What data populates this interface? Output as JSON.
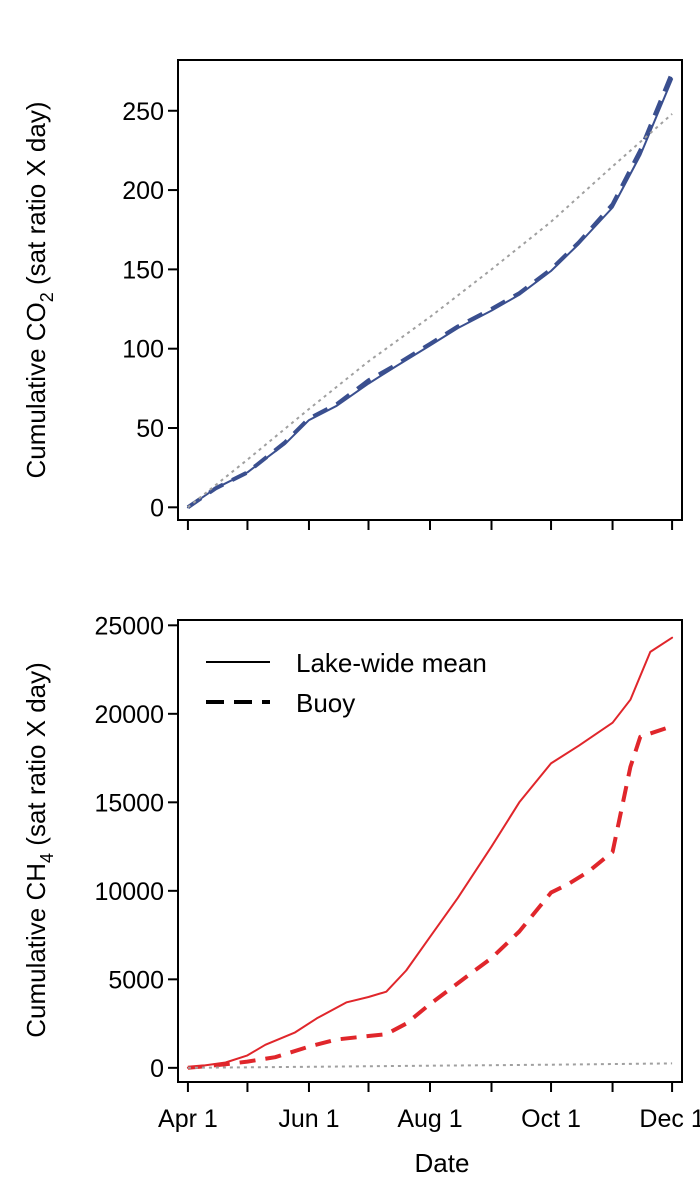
{
  "chart_data": [
    {
      "type": "line",
      "panel": "top",
      "ylabel": {
        "main": "Cumulative CO",
        "sub": "2",
        "tail": " (sat ratio X day)"
      },
      "xlabel": "",
      "ylim": [
        -8,
        282
      ],
      "yticks": [
        0,
        50,
        100,
        150,
        200,
        250
      ],
      "xlim": [
        "2013-03-27",
        "2013-12-06"
      ],
      "xticks": [
        "2013-04-01",
        "2013-05-01",
        "2013-06-01",
        "2013-07-01",
        "2013-08-01",
        "2013-09-01",
        "2013-10-01",
        "2013-11-01",
        "2013-12-01"
      ],
      "xtick_labels_shown": false,
      "grid": false,
      "colors": {
        "main": "#3a4f8f",
        "reference": "#a0a0a0"
      },
      "series": [
        {
          "style": "solid",
          "color": "#3a4f8f",
          "x": [
            "2013-04-01",
            "2013-04-15",
            "2013-05-01",
            "2013-05-20",
            "2013-06-01",
            "2013-06-15",
            "2013-07-01",
            "2013-07-15",
            "2013-08-01",
            "2013-08-15",
            "2013-09-01",
            "2013-09-15",
            "2013-10-01",
            "2013-10-15",
            "2013-11-01",
            "2013-11-15",
            "2013-12-01"
          ],
          "y": [
            0,
            12,
            22,
            40,
            55,
            64,
            78,
            89,
            102,
            113,
            124,
            134,
            149,
            166,
            189,
            222,
            270
          ]
        },
        {
          "style": "dashed",
          "color": "#3a4f8f",
          "x": [
            "2013-04-01",
            "2013-04-15",
            "2013-05-01",
            "2013-05-20",
            "2013-06-01",
            "2013-06-15",
            "2013-07-01",
            "2013-07-15",
            "2013-08-01",
            "2013-08-15",
            "2013-09-01",
            "2013-09-15",
            "2013-10-01",
            "2013-10-15",
            "2013-11-01",
            "2013-11-15",
            "2013-12-01"
          ],
          "y": [
            0,
            12,
            22,
            41,
            56,
            65,
            80,
            90,
            103,
            114,
            125,
            135,
            150,
            167,
            191,
            225,
            274
          ]
        },
        {
          "style": "dotted",
          "color": "#a0a0a0",
          "x": [
            "2013-04-01",
            "2013-05-01",
            "2013-06-01",
            "2013-07-01",
            "2013-08-01",
            "2013-09-01",
            "2013-10-01",
            "2013-11-01",
            "2013-12-01"
          ],
          "y": [
            0,
            30,
            62,
            92,
            120,
            150,
            180,
            215,
            248
          ]
        }
      ]
    },
    {
      "type": "line",
      "panel": "bottom",
      "ylabel": {
        "main": "Cumulative CH",
        "sub": "4",
        "tail": " (sat ratio X day)"
      },
      "xlabel": "Date",
      "ylim": [
        -800,
        25300
      ],
      "yticks": [
        0,
        5000,
        10000,
        15000,
        20000,
        25000
      ],
      "xlim": [
        "2013-03-27",
        "2013-12-06"
      ],
      "xticks": [
        "2013-04-01",
        "2013-05-01",
        "2013-06-01",
        "2013-07-01",
        "2013-08-01",
        "2013-09-01",
        "2013-10-01",
        "2013-11-01",
        "2013-12-01"
      ],
      "xtick_labels": [
        "Apr 1",
        "",
        "Jun 1",
        "",
        "Aug 1",
        "",
        "Oct 1",
        "",
        "Dec 1"
      ],
      "grid": false,
      "legend_position": "top-left",
      "colors": {
        "main": "#e0262b",
        "reference": "#a0a0a0"
      },
      "series": [
        {
          "name": "Lake-wide mean",
          "style": "solid",
          "color": "#e0262b",
          "x": [
            "2013-04-01",
            "2013-04-20",
            "2013-05-01",
            "2013-05-10",
            "2013-05-25",
            "2013-06-05",
            "2013-06-20",
            "2013-07-01",
            "2013-07-10",
            "2013-07-20",
            "2013-08-01",
            "2013-08-15",
            "2013-09-01",
            "2013-09-15",
            "2013-10-01",
            "2013-10-15",
            "2013-11-01",
            "2013-11-10",
            "2013-11-20",
            "2013-12-01"
          ],
          "y": [
            0,
            300,
            700,
            1300,
            2000,
            2800,
            3700,
            4000,
            4300,
            5500,
            7400,
            9600,
            12500,
            15000,
            17200,
            18200,
            19500,
            20800,
            23500,
            24300
          ]
        },
        {
          "name": "Buoy",
          "style": "dashed",
          "color": "#e0262b",
          "x": [
            "2013-04-01",
            "2013-04-20",
            "2013-05-01",
            "2013-05-15",
            "2013-06-01",
            "2013-06-15",
            "2013-07-01",
            "2013-07-10",
            "2013-07-20",
            "2013-08-01",
            "2013-08-20",
            "2013-09-01",
            "2013-09-15",
            "2013-10-01",
            "2013-10-10",
            "2013-10-20",
            "2013-11-01",
            "2013-11-10",
            "2013-11-15",
            "2013-12-01"
          ],
          "y": [
            0,
            200,
            350,
            600,
            1200,
            1600,
            1800,
            1900,
            2500,
            3600,
            5200,
            6200,
            7700,
            9900,
            10400,
            11100,
            12200,
            17000,
            18700,
            19300
          ]
        },
        {
          "style": "dotted",
          "color": "#a0a0a0",
          "x": [
            "2013-04-01",
            "2013-06-01",
            "2013-08-01",
            "2013-10-01",
            "2013-12-01"
          ],
          "y": [
            0,
            60,
            120,
            180,
            250
          ]
        }
      ]
    }
  ]
}
